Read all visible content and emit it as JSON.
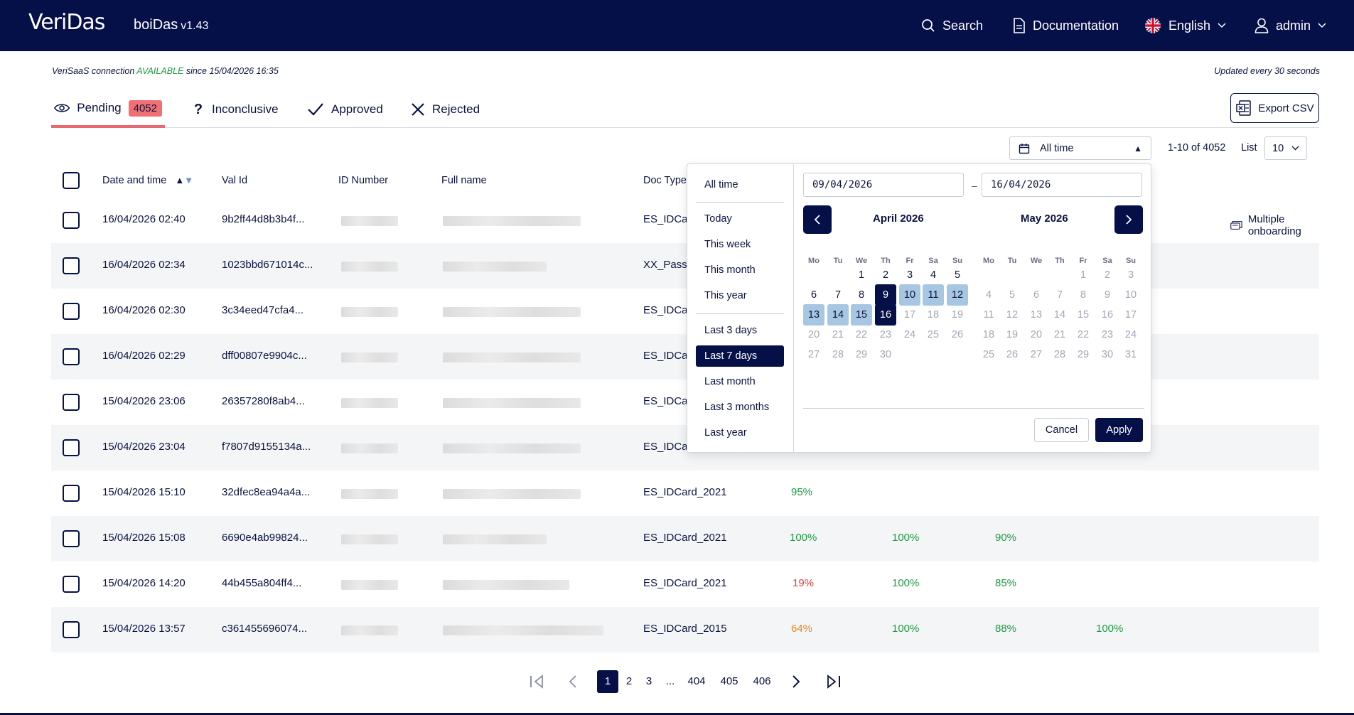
{
  "header": {
    "logo": "VeriDas",
    "app_name": "boiDas",
    "app_version": "v1.43",
    "search_label": "Search",
    "docs_label": "Documentation",
    "language_label": "English",
    "user_label": "admin"
  },
  "status": {
    "conn_prefix": "VeriSaaS connection",
    "conn_state": "AVAILABLE",
    "conn_since": "since 15/04/2026 16:35",
    "updated": "Updated every 30 seconds"
  },
  "tabs": [
    {
      "label": "Pending",
      "count": "4052",
      "icon": "eye-icon"
    },
    {
      "label": "Inconclusive",
      "icon": "question-icon"
    },
    {
      "label": "Approved",
      "icon": "check-icon"
    },
    {
      "label": "Rejected",
      "icon": "x-icon"
    }
  ],
  "export_label": "Export CSV",
  "filters": {
    "date_range_value": "All time",
    "range_info": "1-10 of 4052",
    "list_label": "List",
    "list_value": "10"
  },
  "table": {
    "columns": [
      "Date and time",
      "Val Id",
      "ID Number",
      "Full name",
      "Doc Type"
    ],
    "rows": [
      {
        "date": "16/04/2026 02:40",
        "val_id": "9b2ff44d8b3b4f...",
        "doc_type": "ES_IDCar",
        "extra": "Multiple onboarding"
      },
      {
        "date": "16/04/2026 02:34",
        "val_id": "1023bbd671014c...",
        "doc_type": "XX_Passp"
      },
      {
        "date": "16/04/2026 02:30",
        "val_id": "3c34eed47cfa4...",
        "doc_type": "ES_IDCar"
      },
      {
        "date": "16/04/2026 02:29",
        "val_id": "dff00807e9904c...",
        "doc_type": "ES_IDCar"
      },
      {
        "date": "15/04/2026 23:06",
        "val_id": "26357280f8ab4...",
        "doc_type": "ES_IDCar"
      },
      {
        "date": "15/04/2026 23:04",
        "val_id": "f7807d9155134a...",
        "doc_type": "ES_IDCar"
      },
      {
        "date": "15/04/2026 15:10",
        "val_id": "32dfec8ea94a4a...",
        "doc_type": "ES_IDCard_2021",
        "scores": [
          "95%"
        ]
      },
      {
        "date": "15/04/2026 15:08",
        "val_id": "6690e4ab99824...",
        "doc_type": "ES_IDCard_2021",
        "scores": [
          "100%",
          "100%",
          "90%"
        ]
      },
      {
        "date": "15/04/2026 14:20",
        "val_id": "44b455a804ff4...",
        "doc_type": "ES_IDCard_2021",
        "scores": [
          "19%",
          "100%",
          "85%"
        ]
      },
      {
        "date": "15/04/2026 13:57",
        "val_id": "c361455696074...",
        "doc_type": "ES_IDCard_2015",
        "scores": [
          "64%",
          "100%",
          "88%",
          "100%"
        ]
      }
    ]
  },
  "picker": {
    "presets": [
      "All time",
      "Today",
      "This week",
      "This month",
      "This year",
      "Last 3 days",
      "Last 7 days",
      "Last month",
      "Last 3 months",
      "Last year"
    ],
    "active_preset": "Last 7 days",
    "start_date": "09/04/2026",
    "end_date": "16/04/2026",
    "dash": "–",
    "months": [
      "April 2026",
      "May 2026"
    ],
    "weekdays": [
      "Mo",
      "Tu",
      "We",
      "Th",
      "Fr",
      "Sa",
      "Su"
    ],
    "cancel_label": "Cancel",
    "apply_label": "Apply"
  },
  "pagination": {
    "pages": [
      "1",
      "2",
      "3",
      "...",
      "404",
      "405",
      "406"
    ],
    "current": "1"
  },
  "colors": {
    "navy": "#050f48",
    "badge": "#f07074",
    "green": "#1f9a44",
    "red": "#e04040",
    "orange": "#e08a1e",
    "range": "#a7c6e2"
  }
}
